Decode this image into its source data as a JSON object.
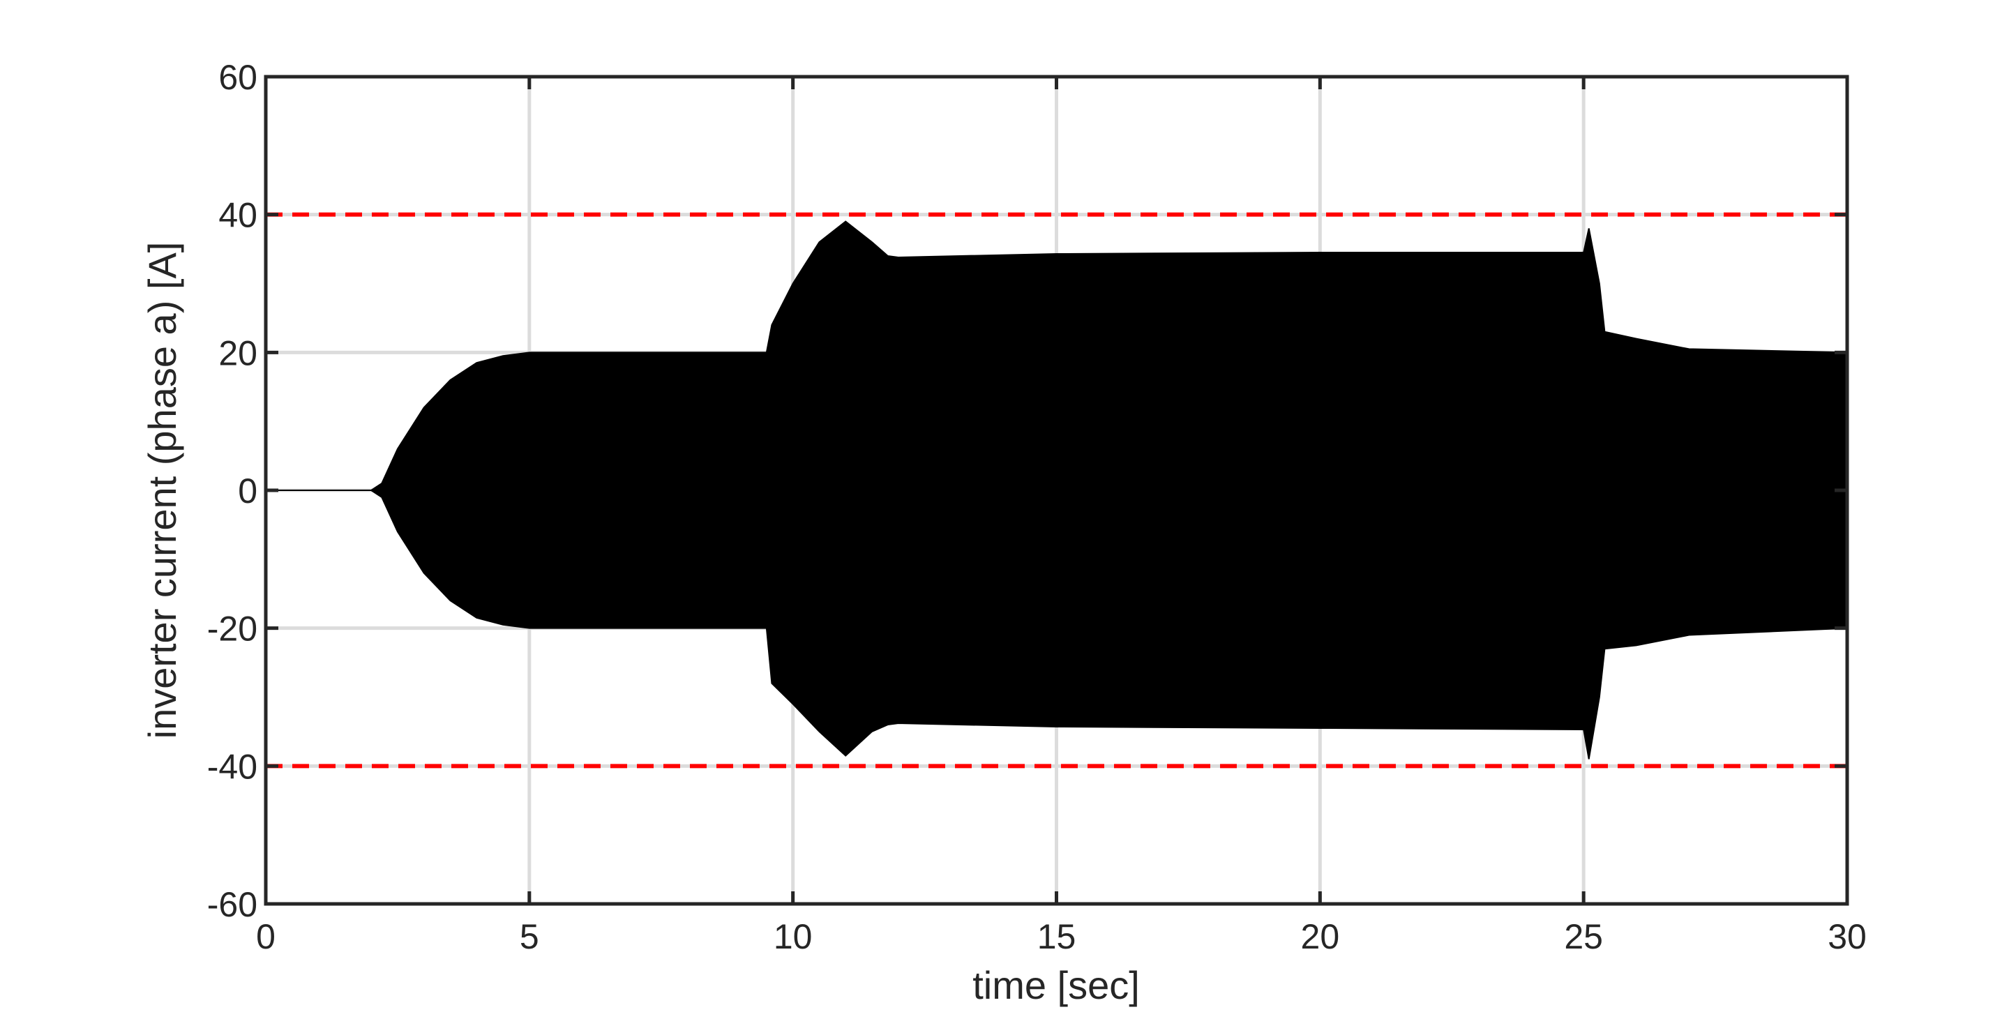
{
  "chart_data": {
    "type": "area",
    "xlabel": "time [sec]",
    "ylabel": "inverter current (phase a) [A]",
    "x": [
      0,
      2,
      2.2,
      2.5,
      3,
      3.5,
      4,
      4.5,
      5,
      9.5,
      9.6,
      10,
      10.5,
      11,
      11.5,
      11.8,
      12,
      15,
      20,
      25,
      25.1,
      25.3,
      25.4,
      26,
      27,
      30
    ],
    "series": [
      {
        "color": "#000000",
        "values": [
          0,
          0,
          1,
          6,
          12,
          16,
          18.5,
          19.5,
          20,
          20,
          24,
          30,
          36,
          39,
          36,
          34,
          33.8,
          34.3,
          34.5,
          34.5,
          38,
          30,
          23,
          22,
          20.5,
          20
        ]
      },
      {
        "color": "#000000",
        "values": [
          0,
          0,
          -1,
          -6,
          -12,
          -16,
          -18.5,
          -19.5,
          -20,
          -20,
          -28,
          -31,
          -35,
          -38.5,
          -35,
          -34,
          -33.8,
          -34.3,
          -34.5,
          -34.7,
          -39,
          -30,
          -23,
          -22.5,
          -21,
          -20
        ]
      }
    ],
    "xlim": [
      0,
      30
    ],
    "ylim": [
      -60,
      60
    ],
    "xticks": [
      0,
      5,
      10,
      15,
      20,
      25,
      30
    ],
    "yticks": [
      -60,
      -40,
      -20,
      0,
      20,
      40,
      60
    ],
    "grid": true,
    "reference_lines": [
      40,
      -40
    ],
    "reference_color": "#ff0000"
  }
}
